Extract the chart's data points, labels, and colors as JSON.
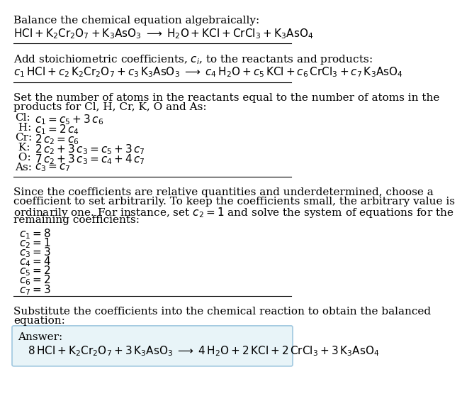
{
  "bg_color": "#ffffff",
  "text_color": "#000000",
  "section1_title": "Balance the chemical equation algebraically:",
  "section2_title_part1": "Add stoichiometric coefficients, $c_i$, to the reactants and products:",
  "section3_title_line1": "Set the number of atoms in the reactants equal to the number of atoms in the",
  "section3_title_line2": "products for Cl, H, Cr, K, O and As:",
  "equations": [
    [
      "Cl:",
      "$c_1 = c_5 + 3\\,c_6$"
    ],
    [
      " H:",
      "$c_1 = 2\\,c_4$"
    ],
    [
      "Cr:",
      "$2\\,c_2 = c_6$"
    ],
    [
      " K:",
      "$2\\,c_2 + 3\\,c_3 = c_5 + 3\\,c_7$"
    ],
    [
      " O:",
      "$7\\,c_2 + 3\\,c_3 = c_4 + 4\\,c_7$"
    ],
    [
      "As:",
      "$c_3 = c_7$"
    ]
  ],
  "section4_lines": [
    "Since the coefficients are relative quantities and underdetermined, choose a",
    "coefficient to set arbitrarily. To keep the coefficients small, the arbitrary value is",
    "ordinarily one. For instance, set $c_2 = 1$ and solve the system of equations for the",
    "remaining coefficients:"
  ],
  "coefficients": [
    "$c_1 = 8$",
    "$c_2 = 1$",
    "$c_3 = 3$",
    "$c_4 = 4$",
    "$c_5 = 2$",
    "$c_6 = 2$",
    "$c_7 = 3$"
  ],
  "section5_line1": "Substitute the coefficients into the chemical reaction to obtain the balanced",
  "section5_line2": "equation:",
  "answer_label": "Answer:",
  "answer_box_color": "#e8f4f8",
  "answer_box_edge": "#a0c8e0"
}
